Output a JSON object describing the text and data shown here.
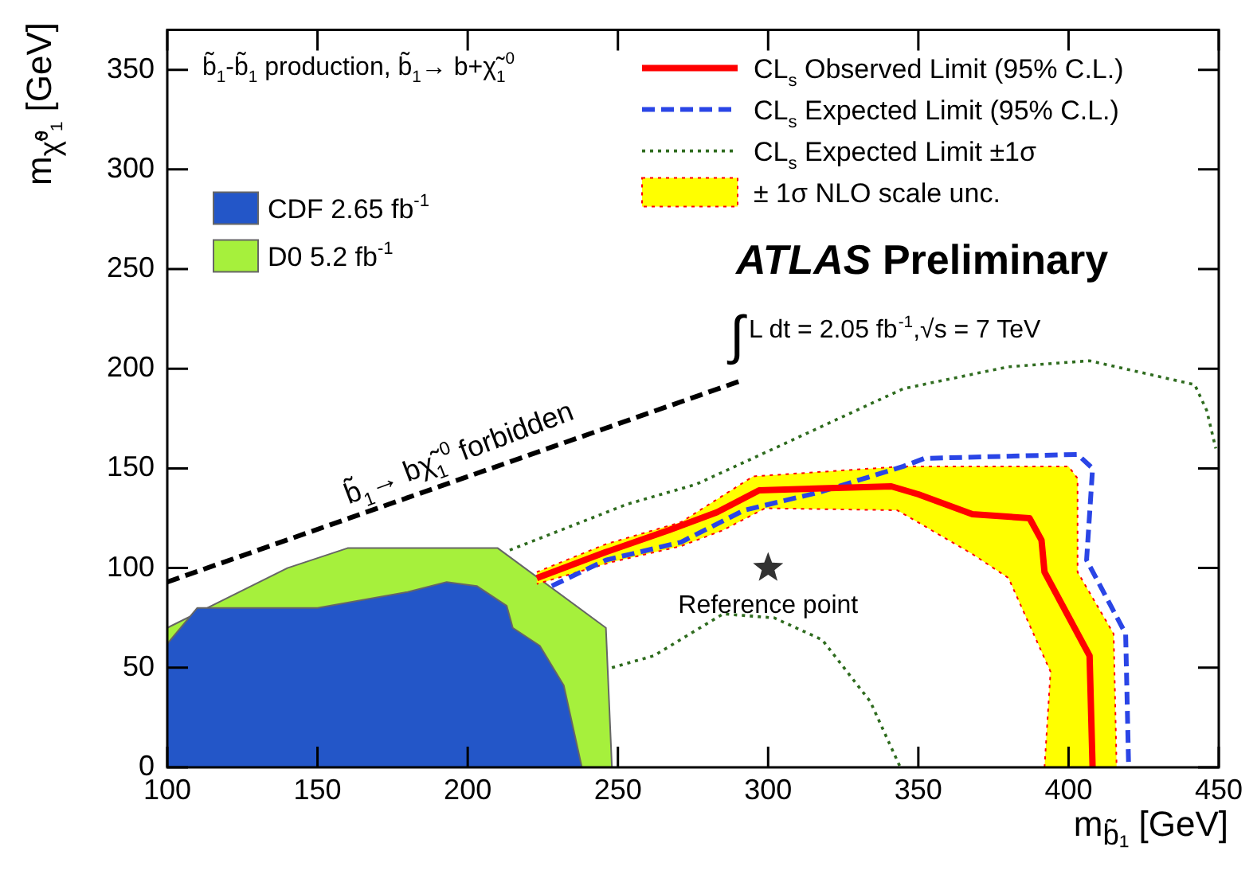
{
  "chart_data": {
    "type": "line",
    "title": "b̃$_{1}$-b̃$_{1}$ production, b̃$_{1}$→ b+χ̃$_{1}$$^{0}$",
    "xlabel": "m$_{b̃₁}$ [GeV]",
    "ylabel": "m$_{χ̃⁰₁}$ [GeV]",
    "xlim": [
      100,
      450
    ],
    "ylim": [
      0,
      370
    ],
    "xticks": [
      100,
      150,
      200,
      250,
      300,
      350,
      400,
      450
    ],
    "yticks": [
      0,
      50,
      100,
      150,
      200,
      250,
      300,
      350
    ],
    "grid": false,
    "legend": "top right",
    "annotations": [
      "ATLAS Preliminary",
      "∫L dt = 2.05 fb$^{-1}$,√s = 7 TeV",
      {
        "text": "b̃$_{1}$→ bχ̃$_{1}$$^{0}$ forbidden",
        "x": 200,
        "y": 146
      }
    ],
    "series": [
      {
        "type": "scatter",
        "name": "Reference point",
        "marker": "star",
        "color": "#333333",
        "x": [
          300
        ],
        "values": [
          100
        ]
      },
      {
        "name": "CL$_{s}$ Observed Limit (95% C.L.)",
        "color": "#ff0000",
        "line_style": "solid",
        "x": [
          223,
          246,
          267,
          283,
          297,
          318,
          341,
          350,
          368,
          387,
          391,
          392,
          407,
          408
        ],
        "values": [
          95,
          108,
          119,
          128,
          139,
          140,
          141,
          137,
          127,
          125,
          114,
          98,
          56,
          0
        ]
      },
      {
        "name": "CL$_{s}$ Expected Limit (95% C.L.)",
        "color": "#2a45e6",
        "line_style": "dashed",
        "x": [
          228,
          246,
          271,
          292,
          317,
          345,
          352,
          403,
          408,
          406,
          419,
          420
        ],
        "values": [
          91,
          104,
          113,
          129,
          138,
          151,
          155,
          157,
          150,
          104,
          67,
          0
        ]
      },
      {
        "name": "CL$_{s}$ Expected Limit ±1σ",
        "color": "#2e6b1e",
        "line_style": "dotted",
        "x": [
          214,
          253,
          276,
          302,
          345,
          380,
          407,
          442,
          446,
          449
        ],
        "values": [
          109,
          132,
          142,
          160,
          190,
          201,
          204,
          192,
          179,
          160
        ]
      },
      {
        "color": "#2e6b1e",
        "line_style": "dotted",
        "x": [
          248,
          262,
          285,
          302,
          318,
          334,
          344
        ],
        "values": [
          50,
          56,
          77,
          75,
          64,
          33,
          0
        ]
      },
      {
        "color": "#000000",
        "line_style": "dashed",
        "x": [
          100,
          291
        ],
        "values": [
          93,
          194
        ]
      },
      {
        "type": "area",
        "name": "± 1σ NLO scale unc.",
        "color": "#ffff00",
        "line_style": "dotted",
        "x": [
          223,
          246,
          271,
          295,
          345,
          400,
          403,
          403,
          415,
          416,
          392,
          394,
          380,
          368,
          343,
          299,
          285,
          271,
          248,
          223
        ],
        "values": [
          98,
          112,
          123,
          146,
          151,
          151,
          145,
          98,
          67,
          0,
          0,
          48,
          95,
          107,
          129,
          130,
          119,
          111,
          103,
          92
        ]
      },
      {
        "type": "area",
        "name": "CDF 2.65 fb$^{-1}$",
        "color": "#2356c8",
        "x": [
          100,
          100,
          110,
          150,
          180,
          193,
          203,
          213,
          215,
          224,
          232,
          238
        ],
        "values": [
          0,
          62,
          80,
          80,
          88,
          93,
          91,
          81,
          70,
          61,
          41,
          0
        ]
      },
      {
        "type": "area",
        "name": "D0 5.2 fb$^{-1}$",
        "color": "#a6f03c",
        "x": [
          100,
          100,
          140,
          160,
          210,
          246,
          248
        ],
        "values": [
          0,
          70,
          100,
          110,
          110,
          70,
          0
        ]
      }
    ]
  }
}
